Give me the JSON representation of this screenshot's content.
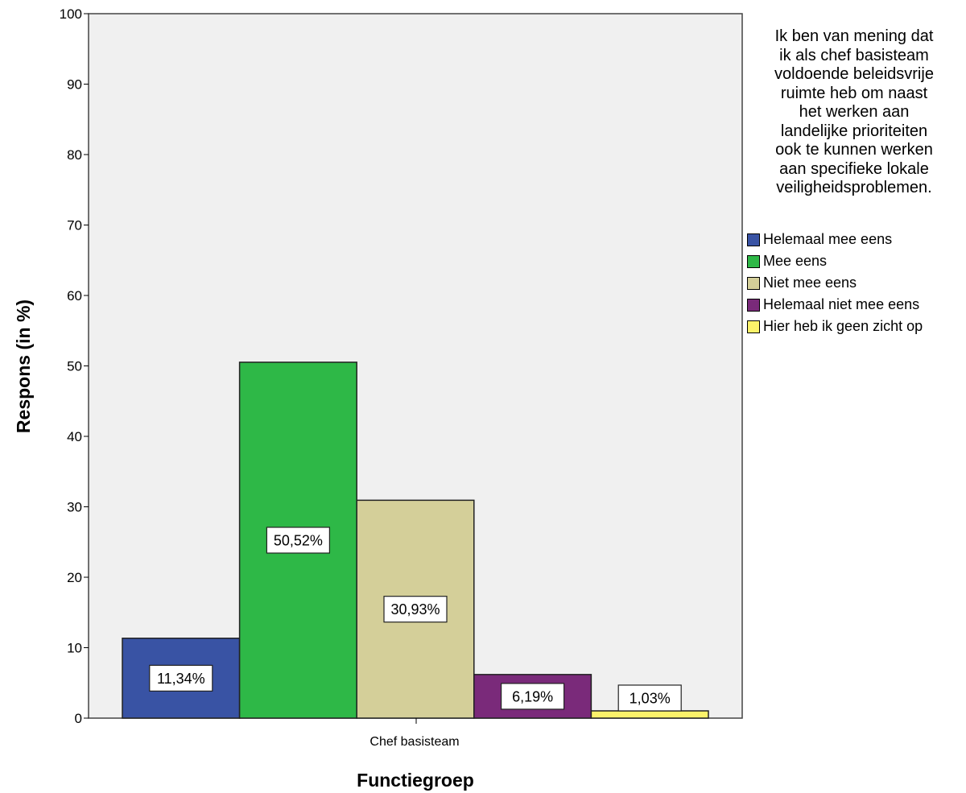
{
  "chart_data": {
    "type": "bar",
    "title": "",
    "xlabel": "Functiegroep",
    "ylabel": "Respons (in %)",
    "ylim": [
      0,
      100
    ],
    "yticks": [
      0,
      10,
      20,
      30,
      40,
      50,
      60,
      70,
      80,
      90,
      100
    ],
    "categories": [
      "Chef basisteam"
    ],
    "legend_title": "Ik ben van mening dat\nik als chef  basisteam\nvoldoende beleidsvrije\nruimte heb om naast\nhet werken aan\nlandelijke prioriteiten\nook te kunnen werken\naan specifieke lokale\nveiligheidsproblemen.",
    "legend_position": "right",
    "grid": false,
    "series": [
      {
        "name": "Helemaal mee eens",
        "color": "#3953a4",
        "values": [
          11.34
        ],
        "label": "11,34%"
      },
      {
        "name": "Mee eens",
        "color": "#2eb847",
        "values": [
          50.52
        ],
        "label": "50,52%"
      },
      {
        "name": "Niet mee eens",
        "color": "#d4cf99",
        "values": [
          30.93
        ],
        "label": "30,93%"
      },
      {
        "name": "Helemaal niet mee eens",
        "color": "#7a2a7a",
        "values": [
          6.19
        ],
        "label": "6,19%"
      },
      {
        "name": "Hier heb ik geen zicht op",
        "color": "#fbf26a",
        "values": [
          1.03
        ],
        "label": "1,03%"
      }
    ]
  }
}
